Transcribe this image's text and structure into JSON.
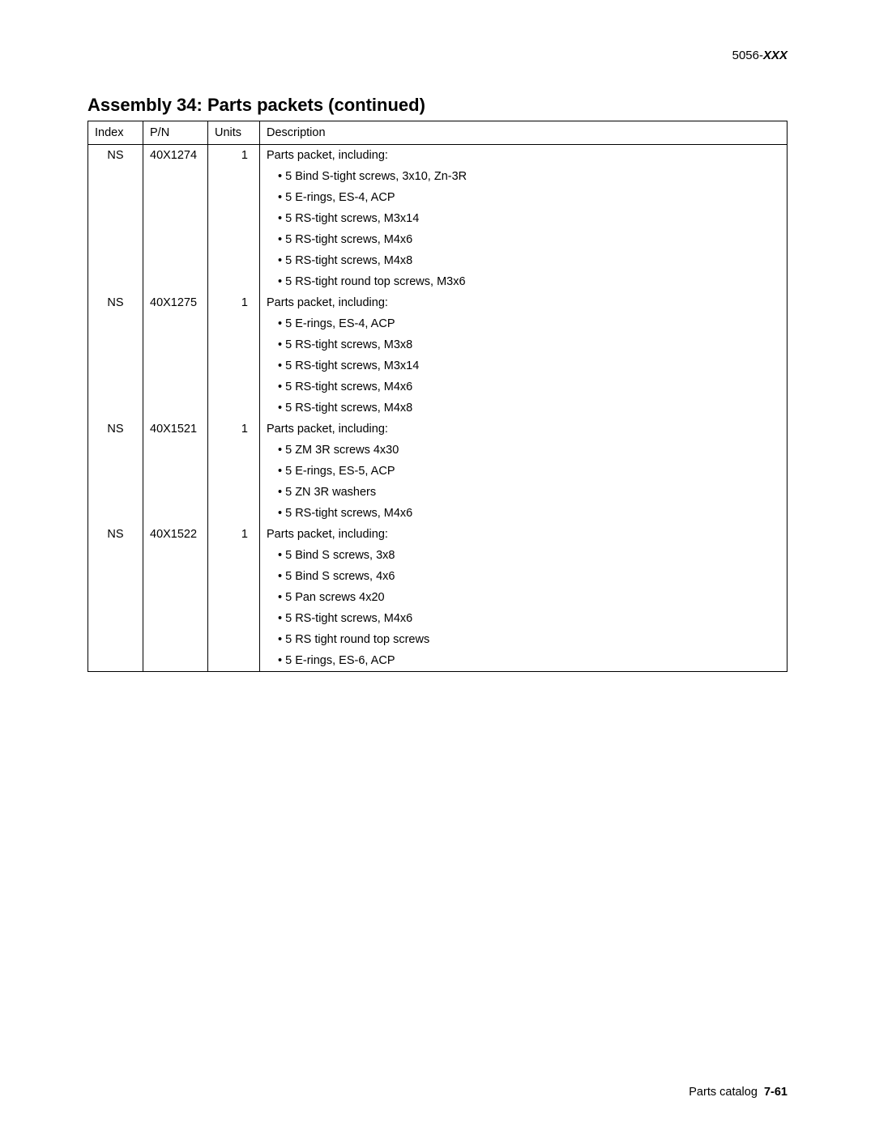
{
  "doc": {
    "header_prefix": "5056-",
    "header_suffix": "XXX",
    "section_title": "Assembly 34:  Parts packets (continued)",
    "footer_label": "Parts catalog",
    "footer_page": "7-61"
  },
  "table": {
    "headers": {
      "index": "Index",
      "pn": "P/N",
      "units": "Units",
      "description": "Description"
    },
    "rows": [
      {
        "index": "NS",
        "pn": "40X1274",
        "units": "1",
        "desc": "Parts packet, including:",
        "subitems": [
          "• 5 Bind S-tight screws, 3x10, Zn-3R",
          "• 5 E-rings, ES-4, ACP",
          "• 5 RS-tight screws, M3x14",
          "• 5 RS-tight screws, M4x6",
          "• 5 RS-tight screws, M4x8",
          "• 5 RS-tight round top screws, M3x6"
        ]
      },
      {
        "index": "NS",
        "pn": "40X1275",
        "units": "1",
        "desc": "Parts packet, including:",
        "subitems": [
          "• 5 E-rings, ES-4, ACP",
          "• 5 RS-tight screws, M3x8",
          "• 5 RS-tight screws, M3x14",
          "• 5 RS-tight screws, M4x6",
          "• 5 RS-tight screws, M4x8"
        ]
      },
      {
        "index": "NS",
        "pn": "40X1521",
        "units": "1",
        "desc": "Parts packet, including:",
        "subitems": [
          "• 5 ZM 3R screws 4x30",
          "• 5 E-rings, ES-5, ACP",
          "• 5 ZN 3R washers",
          "• 5 RS-tight screws, M4x6"
        ]
      },
      {
        "index": "NS",
        "pn": "40X1522",
        "units": "1",
        "desc": "Parts packet, including:",
        "subitems": [
          "• 5 Bind S screws, 3x8",
          "• 5 Bind S screws, 4x6",
          "• 5 Pan screws 4x20",
          "• 5 RS-tight screws, M4x6",
          "• 5 RS tight round top screws",
          "• 5 E-rings, ES-6, ACP"
        ]
      }
    ]
  }
}
